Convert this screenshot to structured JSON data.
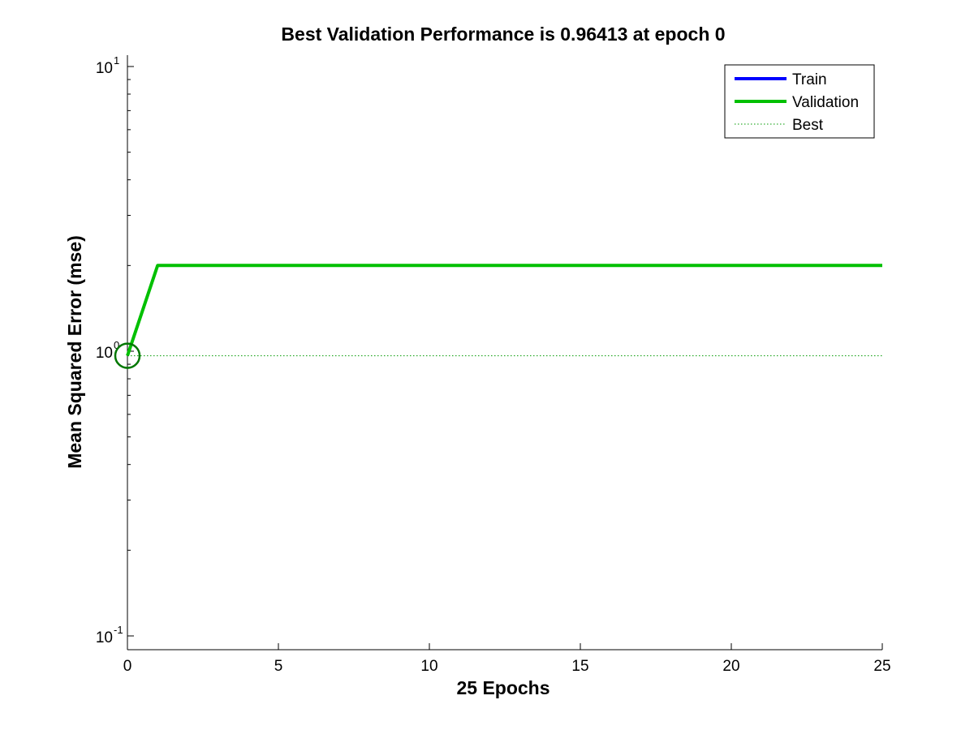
{
  "chart_data": {
    "type": "line",
    "title": "Best Validation Performance is 0.96413 at epoch 0",
    "xlabel": "25 Epochs",
    "ylabel": "Mean Squared Error  (mse)",
    "xlim": [
      0,
      25
    ],
    "ylim": [
      0.08,
      10.5
    ],
    "yscale": "log",
    "grid": false,
    "legend_position": "top-right",
    "x_ticks": [
      0,
      5,
      10,
      15,
      20,
      25
    ],
    "y_ticks": [
      {
        "value": 0.1,
        "base": "10",
        "exp": "-1"
      },
      {
        "value": 1,
        "base": "10",
        "exp": "0"
      },
      {
        "value": 10,
        "base": "10",
        "exp": "1"
      }
    ],
    "series": [
      {
        "name": "Train",
        "color": "#0000ff",
        "style": "solid",
        "x": [],
        "y": []
      },
      {
        "name": "Validation",
        "color": "#00c000",
        "style": "solid",
        "x": [
          0,
          1,
          25
        ],
        "y": [
          0.96413,
          2.0,
          2.0
        ]
      },
      {
        "name": "Best",
        "color": "#009900",
        "style": "dotted",
        "x": [
          0,
          25
        ],
        "y": [
          0.96413,
          0.96413
        ]
      }
    ],
    "best_marker": {
      "x": 0,
      "y": 0.96413,
      "color": "#007700"
    }
  }
}
